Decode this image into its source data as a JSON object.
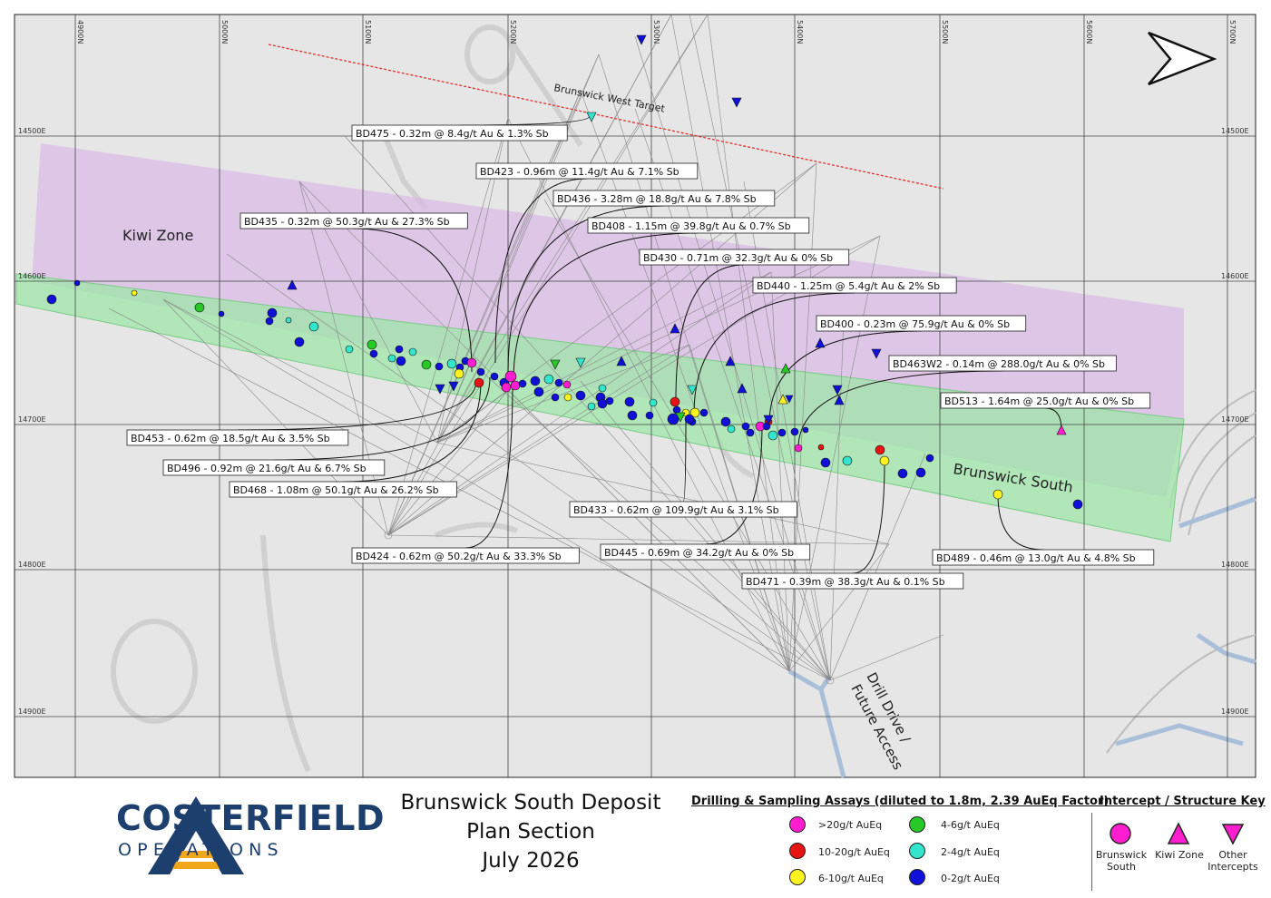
{
  "map": {
    "grid_northing_labels": [
      "4900N",
      "5000N",
      "5100N",
      "5200N",
      "5300N",
      "5400N",
      "5500N",
      "5600N",
      "5700N"
    ],
    "grid_easting_labels": [
      "14500E",
      "14600E",
      "14700E",
      "14800E",
      "14900E"
    ],
    "zone_labels": {
      "kiwi_zone": "Kiwi Zone",
      "brunswick_south": "Brunswick South",
      "brunswick_west_target": "Brunswick West Target",
      "drill_drive_line1": "Drill Drive /",
      "drill_drive_line2": "Future Access"
    },
    "colors": {
      "kiwi_zone_fill": "#d9b8e6",
      "brunswick_south_fill": "#9ee6a8",
      "target_line": "#e0312b",
      "pink": "#ff1ecf",
      "red": "#e81313",
      "yellow": "#fff21f",
      "green": "#27c927",
      "cyan": "#33e5cc",
      "blue": "#1010d8"
    },
    "intercept_labels": [
      "BD475 - 0.32m @ 8.4g/t Au & 1.3% Sb",
      "BD423 - 0.96m @ 11.4g/t Au & 7.1% Sb",
      "BD436 - 3.28m @ 18.8g/t Au & 7.8% Sb",
      "BD435 - 0.32m @ 50.3g/t Au & 27.3% Sb",
      "BD408 - 1.15m @ 39.8g/t Au & 0.7% Sb",
      "BD430 - 0.71m @ 32.3g/t Au & 0% Sb",
      "BD440 - 1.25m @ 5.4g/t Au & 2% Sb",
      "BD400 - 0.23m @ 75.9g/t Au & 0% Sb",
      "BD463W2 - 0.14m @ 288.0g/t Au & 0% Sb",
      "BD513 - 1.64m @ 25.0g/t Au & 0% Sb",
      "BD453 - 0.62m @ 18.5g/t Au & 3.5% Sb",
      "BD496 - 0.92m @ 21.6g/t Au & 6.7% Sb",
      "BD468 - 1.08m @ 50.1g/t Au & 26.2% Sb",
      "BD433 - 0.62m @ 109.9g/t Au & 3.1% Sb",
      "BD424 - 0.62m @ 50.2g/t Au & 33.3% Sb",
      "BD445 - 0.69m @ 34.2g/t Au & 0% Sb",
      "BD489 - 0.46m @ 13.0g/t Au & 4.8% Sb",
      "BD471 - 0.39m @ 38.3g/t Au & 0.1% Sb"
    ]
  },
  "footer": {
    "brand_name": "COSTERFIELD",
    "brand_sub": "OPERATIONS",
    "title_line1": "Brunswick South Deposit",
    "title_line2": "Plan Section",
    "title_line3": "July 2026",
    "assay_legend_title": "Drilling & Sampling Assays (diluted to 1.8m, 2.39 AuEq Factor)",
    "assay_legend": [
      {
        "label": ">20g/t AuEq",
        "color": "#ff1ecf"
      },
      {
        "label": "10-20g/t AuEq",
        "color": "#e81313"
      },
      {
        "label": "6-10g/t AuEq",
        "color": "#fff21f"
      },
      {
        "label": "4-6g/t AuEq",
        "color": "#27c927"
      },
      {
        "label": "2-4g/t AuEq",
        "color": "#33e5cc"
      },
      {
        "label": "0-2g/t AuEq",
        "color": "#1010d8"
      }
    ],
    "key_title": "Intercept / Structure Key",
    "key_items": {
      "brunswick_south_line1": "Brunswick",
      "brunswick_south_line2": "South",
      "kiwi_zone": "Kiwi Zone",
      "other_line1": "Other",
      "other_line2": "Intercepts"
    }
  }
}
